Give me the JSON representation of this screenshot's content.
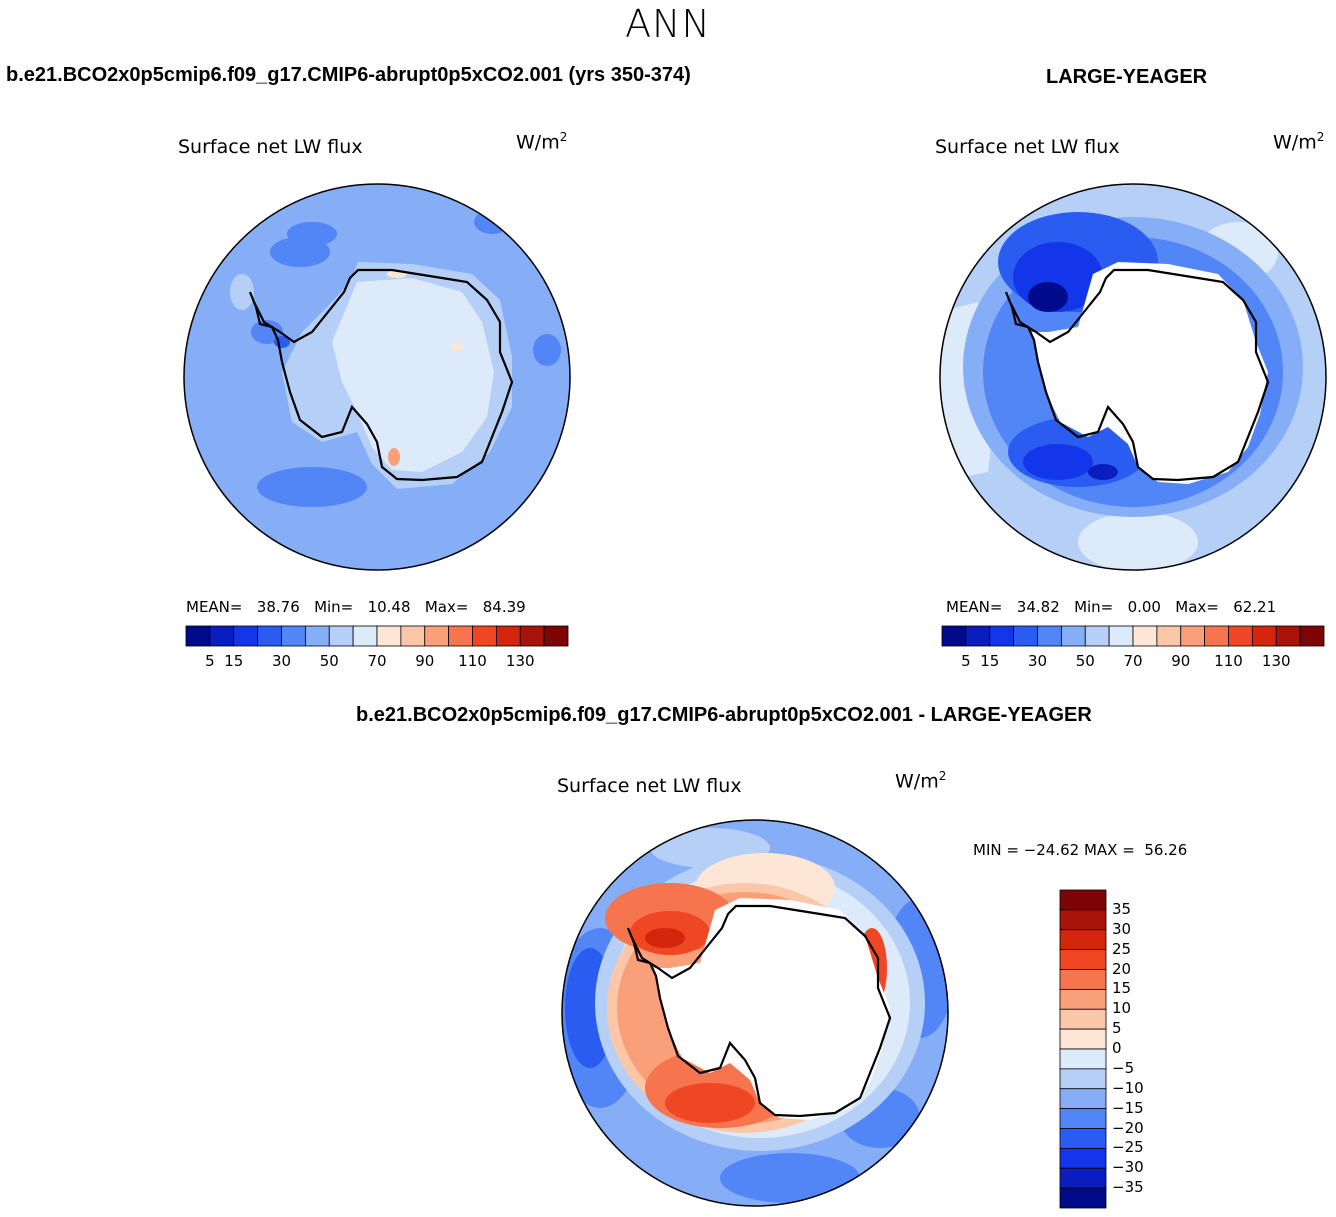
{
  "title": "ANN",
  "panels": {
    "test": {
      "case_title": "b.e21.BCO2x0p5cmip6.f09_g17.CMIP6-abrupt0p5xCO2.001 (yrs 350-374)",
      "variable_label": "Surface net LW flux",
      "units": "W/m",
      "units_exp": "2",
      "stats": {
        "mean_label": "MEAN=",
        "mean": "38.76",
        "min_label": "Min=",
        "min": "10.48",
        "max_label": "Max=",
        "max": "84.39"
      },
      "colorbar_ticks": [
        "5",
        "15",
        "30",
        "50",
        "70",
        "90",
        "110",
        "130"
      ]
    },
    "obs": {
      "case_title": "LARGE-YEAGER",
      "variable_label": "Surface net LW flux",
      "units": "W/m",
      "units_exp": "2",
      "stats": {
        "mean_label": "MEAN=",
        "mean": "34.82",
        "min_label": "Min=",
        "min": "0.00",
        "max_label": "Max=",
        "max": "62.21"
      },
      "colorbar_ticks": [
        "5",
        "15",
        "30",
        "50",
        "70",
        "90",
        "110",
        "130"
      ]
    },
    "diff": {
      "case_title": "b.e21.BCO2x0p5cmip6.f09_g17.CMIP6-abrupt0p5xCO2.001 - LARGE-YEAGER",
      "variable_label": "Surface net LW flux",
      "units": "W/m",
      "units_exp": "2",
      "minmax": "MIN = −24.62 MAX =  56.26",
      "colorbar_ticks": [
        "35",
        "30",
        "25",
        "20",
        "15",
        "10",
        "5",
        "0",
        "−5",
        "−10",
        "−15",
        "−20",
        "−25",
        "−30",
        "−35"
      ]
    }
  },
  "colors": {
    "abs_scale": [
      "#000b8c",
      "#0a1ec0",
      "#1436ea",
      "#2a5cf2",
      "#5285f5",
      "#86aef7",
      "#b5cff7",
      "#dceaf9",
      "#fde6d6",
      "#fcc7a8",
      "#f9a07a",
      "#f6744e",
      "#ef4623",
      "#d3260d",
      "#a9130a",
      "#7e0505"
    ],
    "diff_scale": [
      "#7e0505",
      "#a9130a",
      "#d3260d",
      "#ef4623",
      "#f6744e",
      "#f9a07a",
      "#fcc7a8",
      "#fde6d6",
      "#dceaf9",
      "#b5cff7",
      "#86aef7",
      "#5285f5",
      "#2a5cf2",
      "#1436ea",
      "#0a1ec0",
      "#000b8c"
    ],
    "land": "#ffffff",
    "coast": "#000000"
  }
}
